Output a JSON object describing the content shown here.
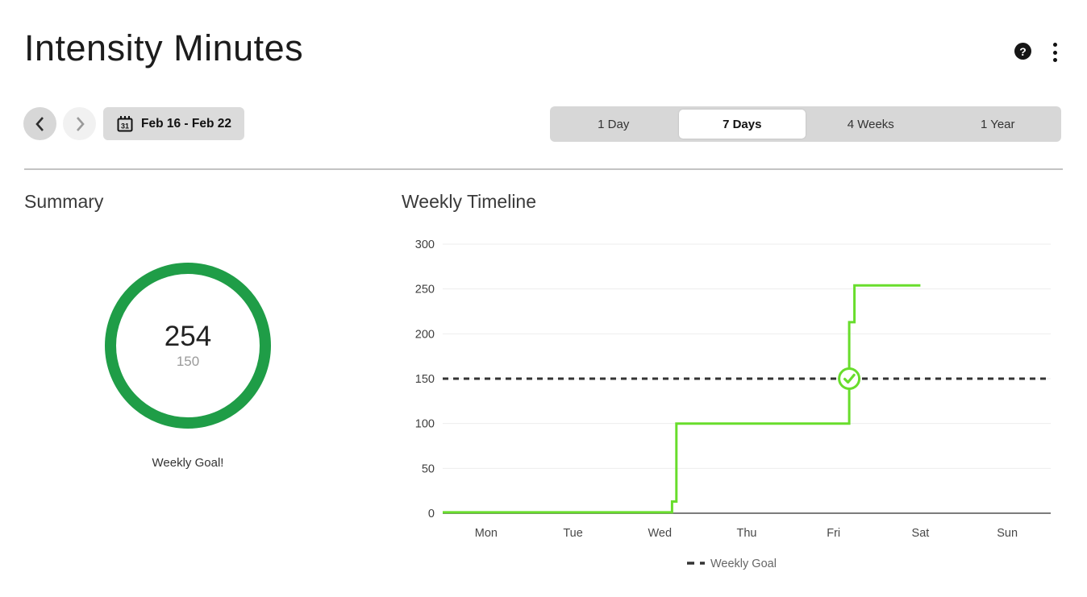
{
  "header": {
    "title": "Intensity Minutes",
    "help_glyph": "?"
  },
  "nav": {
    "date_range": "Feb 16 - Feb 22",
    "calendar_day": "31",
    "ranges": [
      {
        "label": "1 Day",
        "selected": false
      },
      {
        "label": "7 Days",
        "selected": true
      },
      {
        "label": "4 Weeks",
        "selected": false
      },
      {
        "label": "1 Year",
        "selected": false
      }
    ]
  },
  "summary": {
    "heading": "Summary",
    "value": "254",
    "goal": "150",
    "caption": "Weekly Goal!",
    "ring_color": "#1f9d47"
  },
  "timeline": {
    "heading": "Weekly Timeline"
  },
  "chart_data": {
    "type": "line",
    "subtype": "step-cumulative",
    "title": "Weekly Timeline",
    "x_categories": [
      "Mon",
      "Tue",
      "Wed",
      "Thu",
      "Fri",
      "Sat",
      "Sun"
    ],
    "x_unit": "day offset (0 = start of Mon, 7 = end of Sun)",
    "ylabel": "",
    "ylim": [
      0,
      300
    ],
    "yticks": [
      0,
      50,
      100,
      150,
      200,
      250,
      300
    ],
    "grid": true,
    "goal_line": {
      "value": 150,
      "label": "Weekly Goal",
      "style": "dashed",
      "color": "#333333"
    },
    "series": [
      {
        "name": "Intensity Minutes",
        "color": "#68dd2c",
        "points": [
          [
            0,
            1
          ],
          [
            2.64,
            1
          ],
          [
            2.64,
            13
          ],
          [
            2.69,
            13
          ],
          [
            2.69,
            100
          ],
          [
            4.68,
            100
          ],
          [
            4.68,
            213
          ],
          [
            4.74,
            213
          ],
          [
            4.74,
            254
          ],
          [
            5.5,
            254
          ]
        ]
      }
    ],
    "marker": {
      "x": 4.68,
      "y": 150,
      "type": "goal-achieved-check",
      "color": "#68dd2c"
    },
    "legend": [
      {
        "label": "Weekly Goal",
        "style": "dashed",
        "color": "#333333"
      }
    ],
    "legend_position": "bottom-center"
  },
  "colors": {
    "ring_green": "#1f9d47",
    "line_green": "#68dd2c",
    "goal_dash": "#333333",
    "gridline": "#ededed",
    "axis_line": "#7c7c7c",
    "tick_text": "#3f3f3f",
    "day_text": "#484848",
    "legend_text": "#666666"
  }
}
